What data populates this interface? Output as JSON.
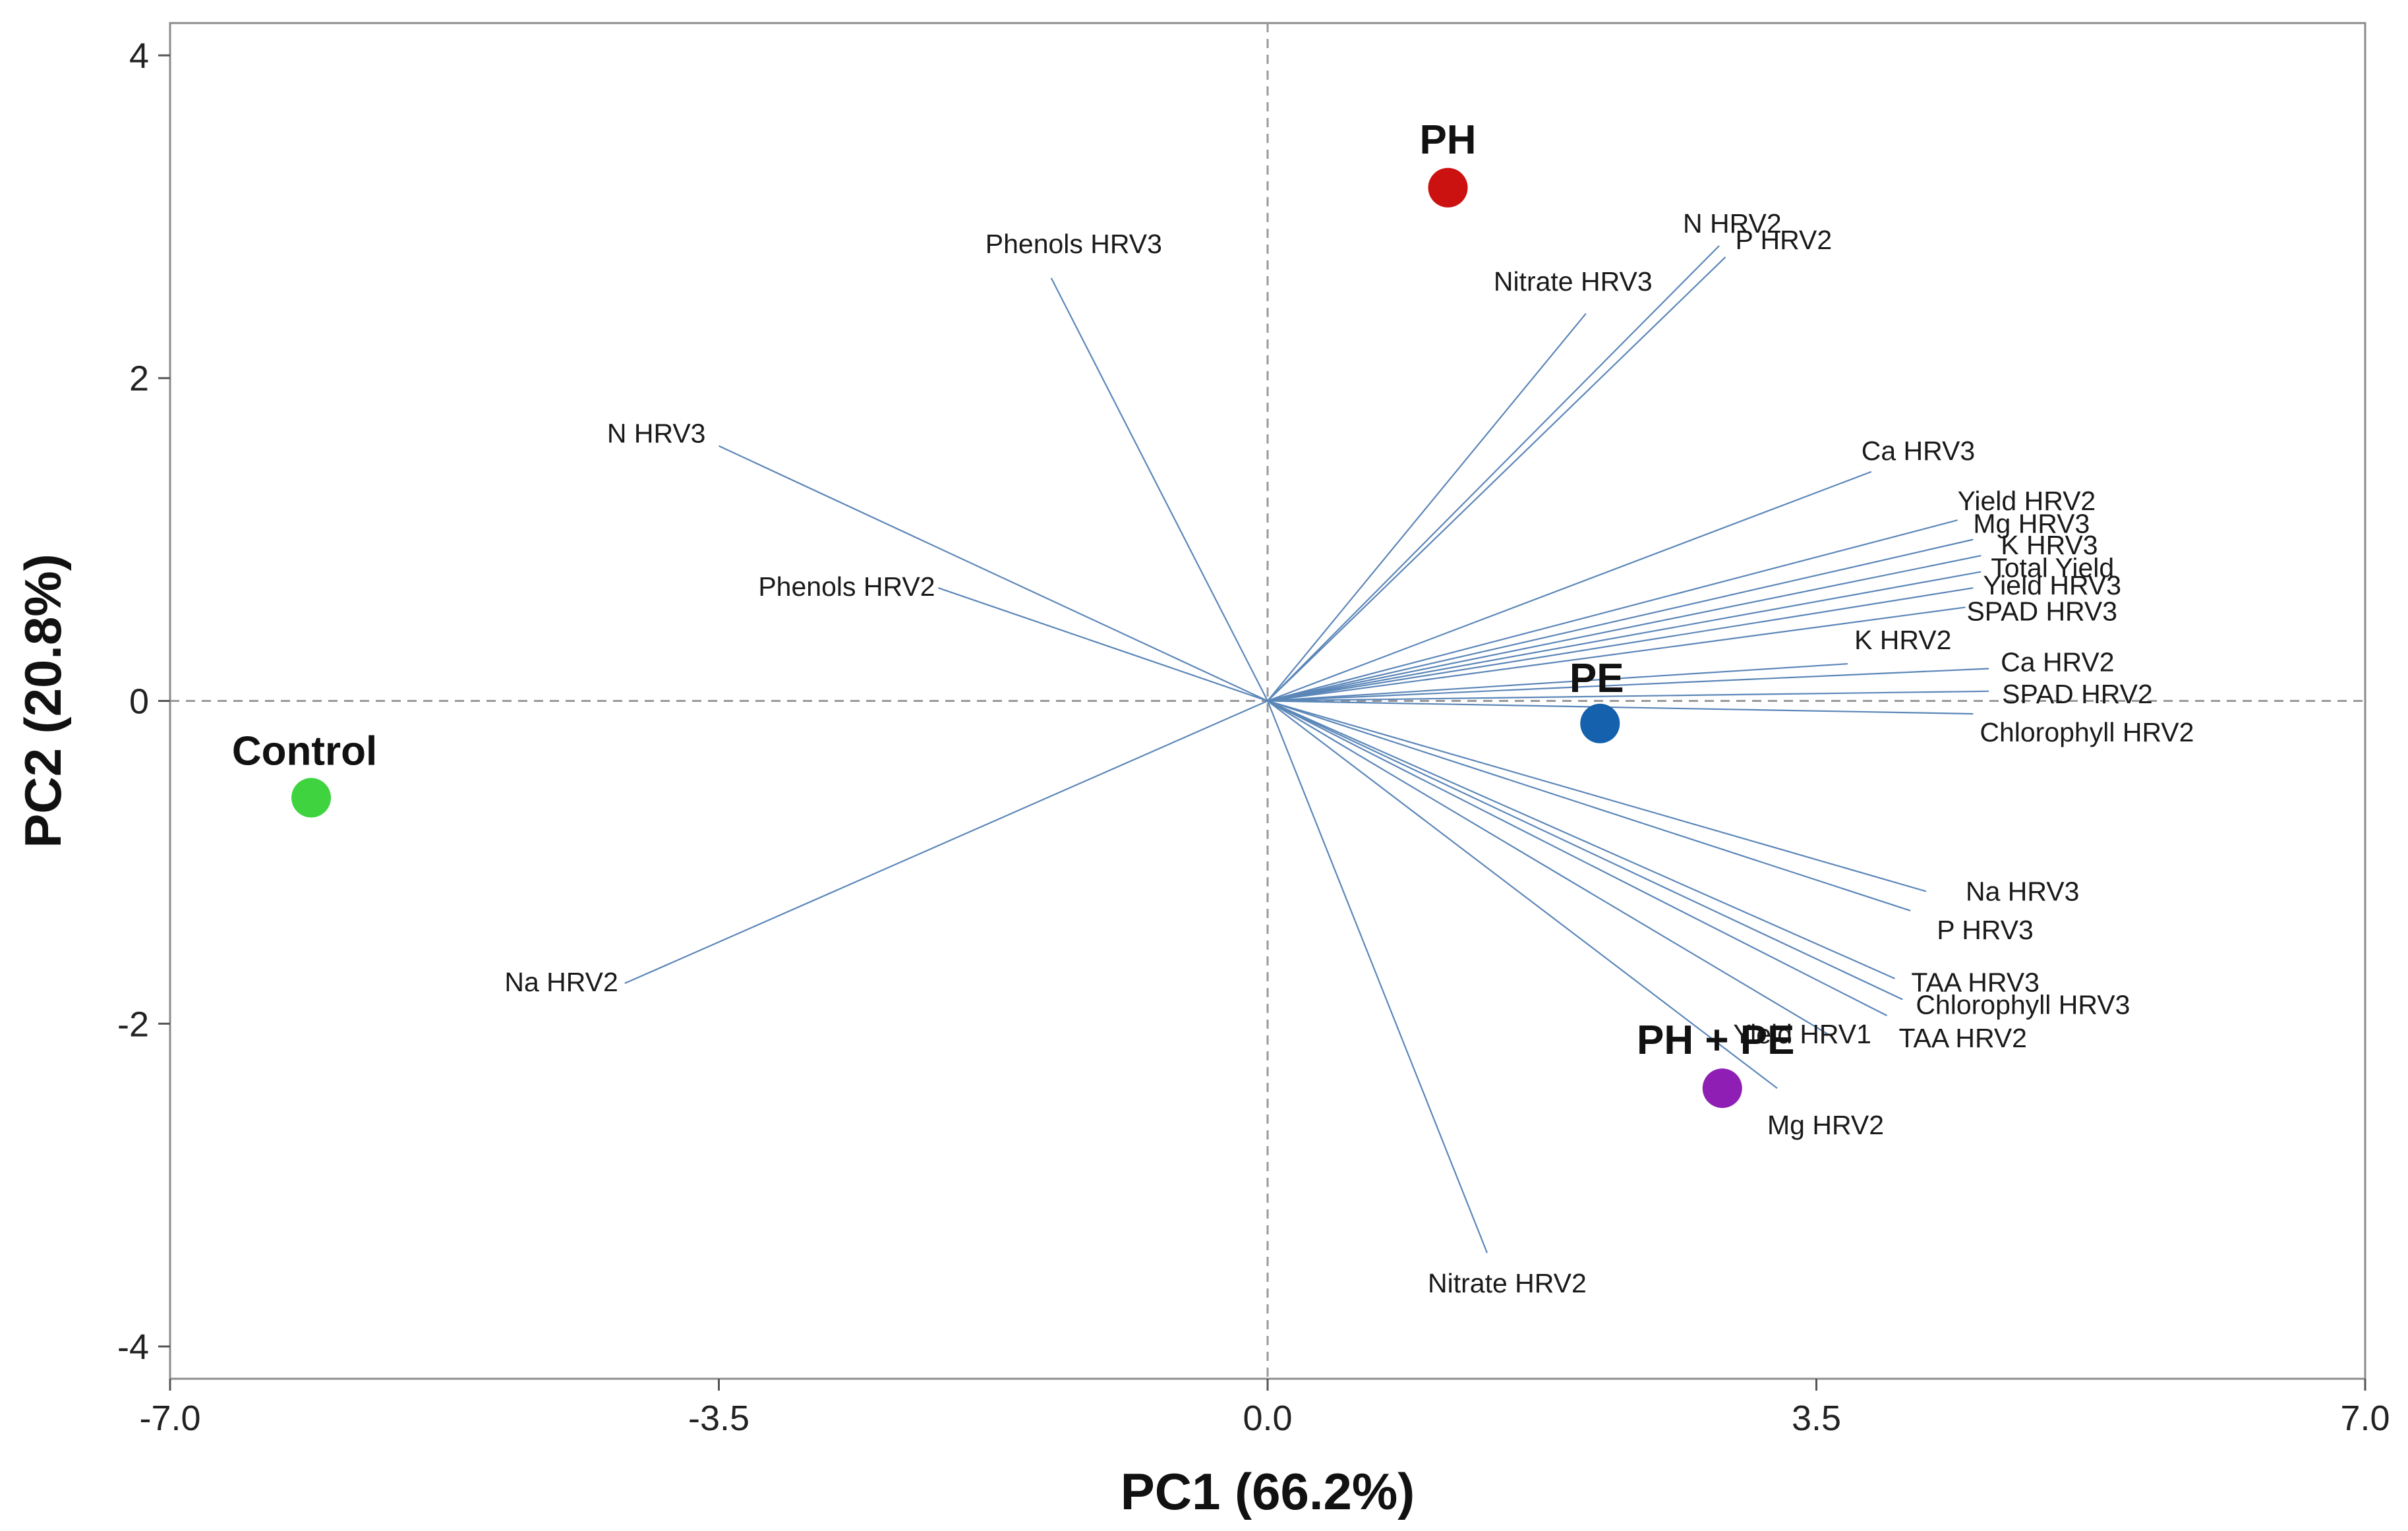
{
  "chart_data": {
    "type": "scatter",
    "subtype": "pca-biplot",
    "title": "",
    "xlabel": "PC1 (66.2%)",
    "ylabel": "PC2 (20.8%)",
    "xlim": [
      -7.0,
      7.0
    ],
    "ylim": [
      -4.2,
      4.2
    ],
    "x_ticks": [
      -7.0,
      -3.5,
      0.0,
      3.5,
      7.0
    ],
    "x_tick_labels": [
      "-7.0",
      "-3.5",
      "0.0",
      "3.5",
      "7.0"
    ],
    "y_ticks": [
      -4,
      -2,
      0,
      2,
      4
    ],
    "y_tick_labels": [
      "-4",
      "-2",
      "0",
      "2",
      "4"
    ],
    "reference_lines": {
      "x": 0,
      "y": 0,
      "style": "dashed"
    },
    "colors": {
      "vector": "#5b86b8",
      "axes": "#8c8c8c",
      "refline": "#999999"
    },
    "scores": [
      {
        "name": "PH",
        "x": 1.15,
        "y": 3.18,
        "color": "#cc1111"
      },
      {
        "name": "PE",
        "x": 2.12,
        "y": -0.14,
        "color": "#1561ad"
      },
      {
        "name": "Control",
        "x": -6.1,
        "y": -0.6,
        "color": "#3fd43f"
      },
      {
        "name": "PH + PE",
        "x": 2.9,
        "y": -2.4,
        "color": "#8f1fb4"
      }
    ],
    "loadings": [
      {
        "name": "N HRV2",
        "x": 2.88,
        "y": 2.82
      },
      {
        "name": "P HRV2",
        "x": 2.92,
        "y": 2.75
      },
      {
        "name": "Nitrate HRV3",
        "x": 2.03,
        "y": 2.4
      },
      {
        "name": "Phenols HRV3",
        "x": -1.38,
        "y": 2.62
      },
      {
        "name": "N HRV3",
        "x": -3.5,
        "y": 1.58
      },
      {
        "name": "Phenols HRV2",
        "x": -2.1,
        "y": 0.7
      },
      {
        "name": "Ca HRV3",
        "x": 3.85,
        "y": 1.42
      },
      {
        "name": "Yield HRV2",
        "x": 4.4,
        "y": 1.12
      },
      {
        "name": "Mg HRV3",
        "x": 4.5,
        "y": 1.0
      },
      {
        "name": "K HRV3",
        "x": 4.55,
        "y": 0.9
      },
      {
        "name": "Total Yield",
        "x": 4.55,
        "y": 0.8
      },
      {
        "name": "Yield HRV3",
        "x": 4.5,
        "y": 0.7
      },
      {
        "name": "SPAD HRV3",
        "x": 4.45,
        "y": 0.58
      },
      {
        "name": "K HRV2",
        "x": 3.7,
        "y": 0.23
      },
      {
        "name": "Ca HRV2",
        "x": 4.6,
        "y": 0.2
      },
      {
        "name": "SPAD HRV2",
        "x": 4.6,
        "y": 0.06
      },
      {
        "name": "Chlorophyll HRV2",
        "x": 4.5,
        "y": -0.08
      },
      {
        "name": "Na HRV3",
        "x": 4.2,
        "y": -1.18
      },
      {
        "name": "P HRV3",
        "x": 4.1,
        "y": -1.3
      },
      {
        "name": "TAA HRV3",
        "x": 4.0,
        "y": -1.72
      },
      {
        "name": "Chlorophyll HRV3",
        "x": 4.05,
        "y": -1.85
      },
      {
        "name": "TAA HRV2",
        "x": 3.95,
        "y": -1.95
      },
      {
        "name": "Yield HRV1",
        "x": 3.6,
        "y": -2.08
      },
      {
        "name": "Mg HRV2",
        "x": 3.25,
        "y": -2.4
      },
      {
        "name": "Nitrate HRV2",
        "x": 1.4,
        "y": -3.42
      },
      {
        "name": "Na HRV2",
        "x": -4.1,
        "y": -1.75
      }
    ]
  }
}
